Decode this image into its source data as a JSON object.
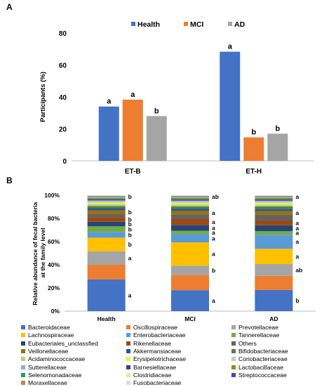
{
  "panel_a_label": "A",
  "panel_b_label": "B",
  "chart_data": [
    {
      "type": "bar",
      "ylabel": "Participants (%)",
      "ylim": [
        0,
        80
      ],
      "yticks": [
        0,
        20,
        40,
        60,
        80
      ],
      "categories": [
        "ET-B",
        "ET-H"
      ],
      "legend_position": "top",
      "series": [
        {
          "name": "Health",
          "color": "#4472c4",
          "values": [
            34,
            68.3
          ],
          "letters": [
            "a",
            "a"
          ]
        },
        {
          "name": "MCI",
          "color": "#ed7d31",
          "values": [
            38.3,
            14.7
          ],
          "letters": [
            "a",
            "b"
          ]
        },
        {
          "name": "AD",
          "color": "#a5a5a5",
          "values": [
            28,
            17
          ],
          "letters": [
            "b",
            "b"
          ]
        }
      ]
    },
    {
      "type": "bar",
      "stacked": true,
      "ylabel": "Relative abundance of fecal bacteria at the family level",
      "ylim": [
        0,
        100
      ],
      "yticks": [
        "0%",
        "20%",
        "40%",
        "60%",
        "80%",
        "100%"
      ],
      "categories": [
        "Health",
        "MCI",
        "AD"
      ],
      "families": [
        {
          "name": "Bacteroidaceae",
          "color": "#4472c4",
          "values": [
            28,
            18,
            18
          ]
        },
        {
          "name": "Oscillospiraceae",
          "color": "#ed7d31",
          "values": [
            13,
            13,
            12
          ]
        },
        {
          "name": "Prevotellaceae",
          "color": "#a5a5a5",
          "values": [
            12,
            8,
            10
          ]
        },
        {
          "name": "Lachnospiraceae",
          "color": "#ffc000",
          "values": [
            12,
            20,
            13
          ]
        },
        {
          "name": "Enterobacteriaceae",
          "color": "#5b9bd5",
          "values": [
            5,
            7,
            12
          ]
        },
        {
          "name": "Tannerellaceae",
          "color": "#70ad47",
          "values": [
            5,
            3,
            3
          ]
        },
        {
          "name": "Eubacteriales_unclassfied",
          "color": "#264478",
          "values": [
            4,
            5,
            5
          ]
        },
        {
          "name": "Rikenellaceae",
          "color": "#9e480e",
          "values": [
            4,
            5,
            4
          ]
        },
        {
          "name": "Others",
          "color": "#636363",
          "values": [
            3,
            4,
            5
          ]
        },
        {
          "name": "Veillonellaceae",
          "color": "#997300",
          "values": [
            3,
            3,
            3
          ]
        },
        {
          "name": "Akkermansiaceae",
          "color": "#2f5597",
          "values": [
            2,
            2,
            2
          ]
        },
        {
          "name": "Bifidobacteriaceae",
          "color": "#548235",
          "values": [
            2,
            2,
            2
          ]
        },
        {
          "name": "Acidaminococcaceae",
          "color": "#a9d18e",
          "values": [
            1.5,
            1.5,
            1.5
          ]
        },
        {
          "name": "Erysipelotrichaceae",
          "color": "#eeee44",
          "values": [
            1.5,
            1.5,
            1.5
          ]
        },
        {
          "name": "Coriobacteriaceae",
          "color": "#c9c9c9",
          "values": [
            1,
            1,
            1
          ]
        },
        {
          "name": "Sutterellaceae",
          "color": "#8faadc",
          "values": [
            1,
            1,
            1
          ]
        },
        {
          "name": "Barnesiellaceae",
          "color": "#3c3c8c",
          "values": [
            1,
            1,
            1
          ]
        },
        {
          "name": "Lactobacillaceae",
          "color": "#8c8c28",
          "values": [
            0.8,
            0.8,
            0.8
          ]
        },
        {
          "name": "Selenomonadaceae",
          "color": "#28a064",
          "values": [
            0.7,
            0.7,
            0.7
          ]
        },
        {
          "name": "Clostridiaceae",
          "color": "#d9f0a3",
          "values": [
            0.5,
            0.5,
            0.5
          ]
        },
        {
          "name": "Streptococcaceae",
          "color": "#4a4ab0",
          "values": [
            0.5,
            0.5,
            0.5
          ]
        },
        {
          "name": "Moraxellaceae",
          "color": "#c08a3c",
          "values": [
            0.5,
            0.5,
            0.5
          ]
        },
        {
          "name": "Fusobacteriaceae",
          "color": "#dcdcdc",
          "values": [
            0.5,
            0.5,
            0.5
          ]
        }
      ],
      "annotations": {
        "Health": {
          "Bacteroidaceae": "a",
          "Prevotellaceae": "a",
          "Lachnospiraceae": "b",
          "Enterobacteriaceae": "b",
          "Tannerellaceae": "b",
          "Eubacteriales_unclassfied": "b",
          "Rikenellaceae": "b",
          "Veillonellaceae": "b",
          "Streptococcaceae": "b"
        },
        "MCI": {
          "Bacteroidaceae": "a",
          "Prevotellaceae": "b",
          "Lachnospiraceae": "a",
          "Enterobacteriaceae": "a",
          "Tannerellaceae": "a",
          "Eubacteriales_unclassfied": "a",
          "Rikenellaceae": "a",
          "Veillonellaceae": "a",
          "Streptococcaceae": "ab"
        },
        "AD": {
          "Bacteroidaceae": "b",
          "Prevotellaceae": "ab",
          "Lachnospiraceae": "a",
          "Enterobacteriaceae": "a",
          "Tannerellaceae": "a",
          "Eubacteriales_unclassfied": "a",
          "Rikenellaceae": "a",
          "Veillonellaceae": "a",
          "Streptococcaceae": "a"
        }
      }
    }
  ]
}
